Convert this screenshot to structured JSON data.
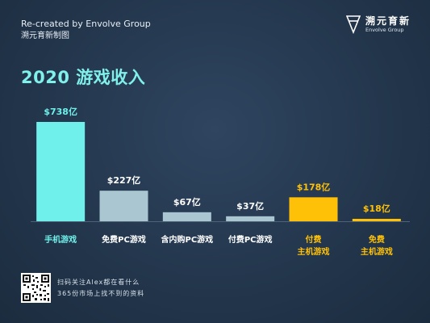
{
  "credit": {
    "line1": "Re-created by Envolve Group",
    "line2": "溯元育新制图"
  },
  "logo": {
    "name_cn": "溯元育新",
    "name_en": "Envolve Group",
    "icon": "envolve-logo-icon"
  },
  "title": "2020 游戏收入",
  "chart_data": {
    "type": "bar",
    "title": "2020 游戏收入",
    "xlabel": "",
    "ylabel": "",
    "categories": [
      "手机游戏",
      "免费PC游戏",
      "含内购PC游戏",
      "付费PC游戏",
      "付费\n主机游戏",
      "免费\n主机游戏"
    ],
    "values": [
      738,
      227,
      67,
      37,
      178,
      18
    ],
    "data_labels": [
      "$738亿",
      "$227亿",
      "$67亿",
      "$37亿",
      "$178亿",
      "$18亿"
    ],
    "unit": "亿美元",
    "ylim": [
      0,
      738
    ],
    "grid": false,
    "colors": {
      "bars": [
        "#6ff0ea",
        "#a9c6d1",
        "#a9c6d1",
        "#a9c6d1",
        "#ffc107",
        "#ffc107"
      ],
      "labels": [
        "#6ff0ea",
        "#ffffff",
        "#ffffff",
        "#ffffff",
        "#ffc107",
        "#ffc107"
      ],
      "baseline": "#4e6378"
    }
  },
  "footer": {
    "line1": "扫码关注Alex都在看什么",
    "line2": "365份市场上找不到的资料",
    "qr": "qr-code-icon"
  }
}
